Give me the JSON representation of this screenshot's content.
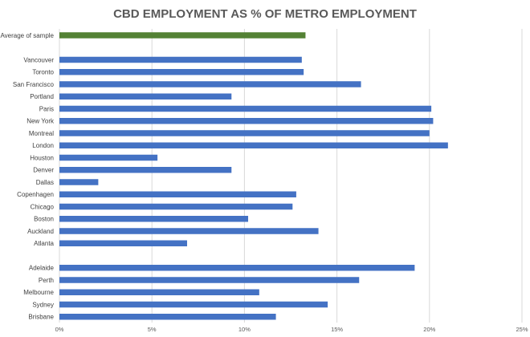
{
  "chart_data": {
    "type": "bar",
    "orientation": "horizontal",
    "title": "CBD EMPLOYMENT AS % OF METRO EMPLOYMENT",
    "xlabel": "",
    "ylabel": "",
    "xlim": [
      0,
      25
    ],
    "ticks": [
      0,
      5,
      10,
      15,
      20,
      25
    ],
    "tick_labels": [
      "0%",
      "5%",
      "10%",
      "15%",
      "20%",
      "25%"
    ],
    "grid": true,
    "colors": {
      "average": "#548235",
      "bars": "#4472c4"
    },
    "groups": [
      {
        "bars": [
          {
            "label": "Average of sample",
            "value": 13.3,
            "highlight": true
          }
        ]
      },
      {
        "bars": [
          {
            "label": "Vancouver",
            "value": 13.1
          },
          {
            "label": "Toronto",
            "value": 13.2
          },
          {
            "label": "San Francisco",
            "value": 16.3
          },
          {
            "label": "Portland",
            "value": 9.3
          },
          {
            "label": "Paris",
            "value": 20.1
          },
          {
            "label": "New York",
            "value": 20.2
          },
          {
            "label": "Montreal",
            "value": 20.0
          },
          {
            "label": "London",
            "value": 21.0
          },
          {
            "label": "Houston",
            "value": 5.3
          },
          {
            "label": "Denver",
            "value": 9.3
          },
          {
            "label": "Dallas",
            "value": 2.1
          },
          {
            "label": "Copenhagen",
            "value": 12.8
          },
          {
            "label": "Chicago",
            "value": 12.6
          },
          {
            "label": "Boston",
            "value": 10.2
          },
          {
            "label": "Auckland",
            "value": 14.0
          },
          {
            "label": "Atlanta",
            "value": 6.9
          }
        ]
      },
      {
        "bars": [
          {
            "label": "Adelaide",
            "value": 19.2
          },
          {
            "label": "Perth",
            "value": 16.2
          },
          {
            "label": "Melbourne",
            "value": 10.8
          },
          {
            "label": "Sydney",
            "value": 14.5
          },
          {
            "label": "Brisbane",
            "value": 11.7
          }
        ]
      }
    ]
  }
}
